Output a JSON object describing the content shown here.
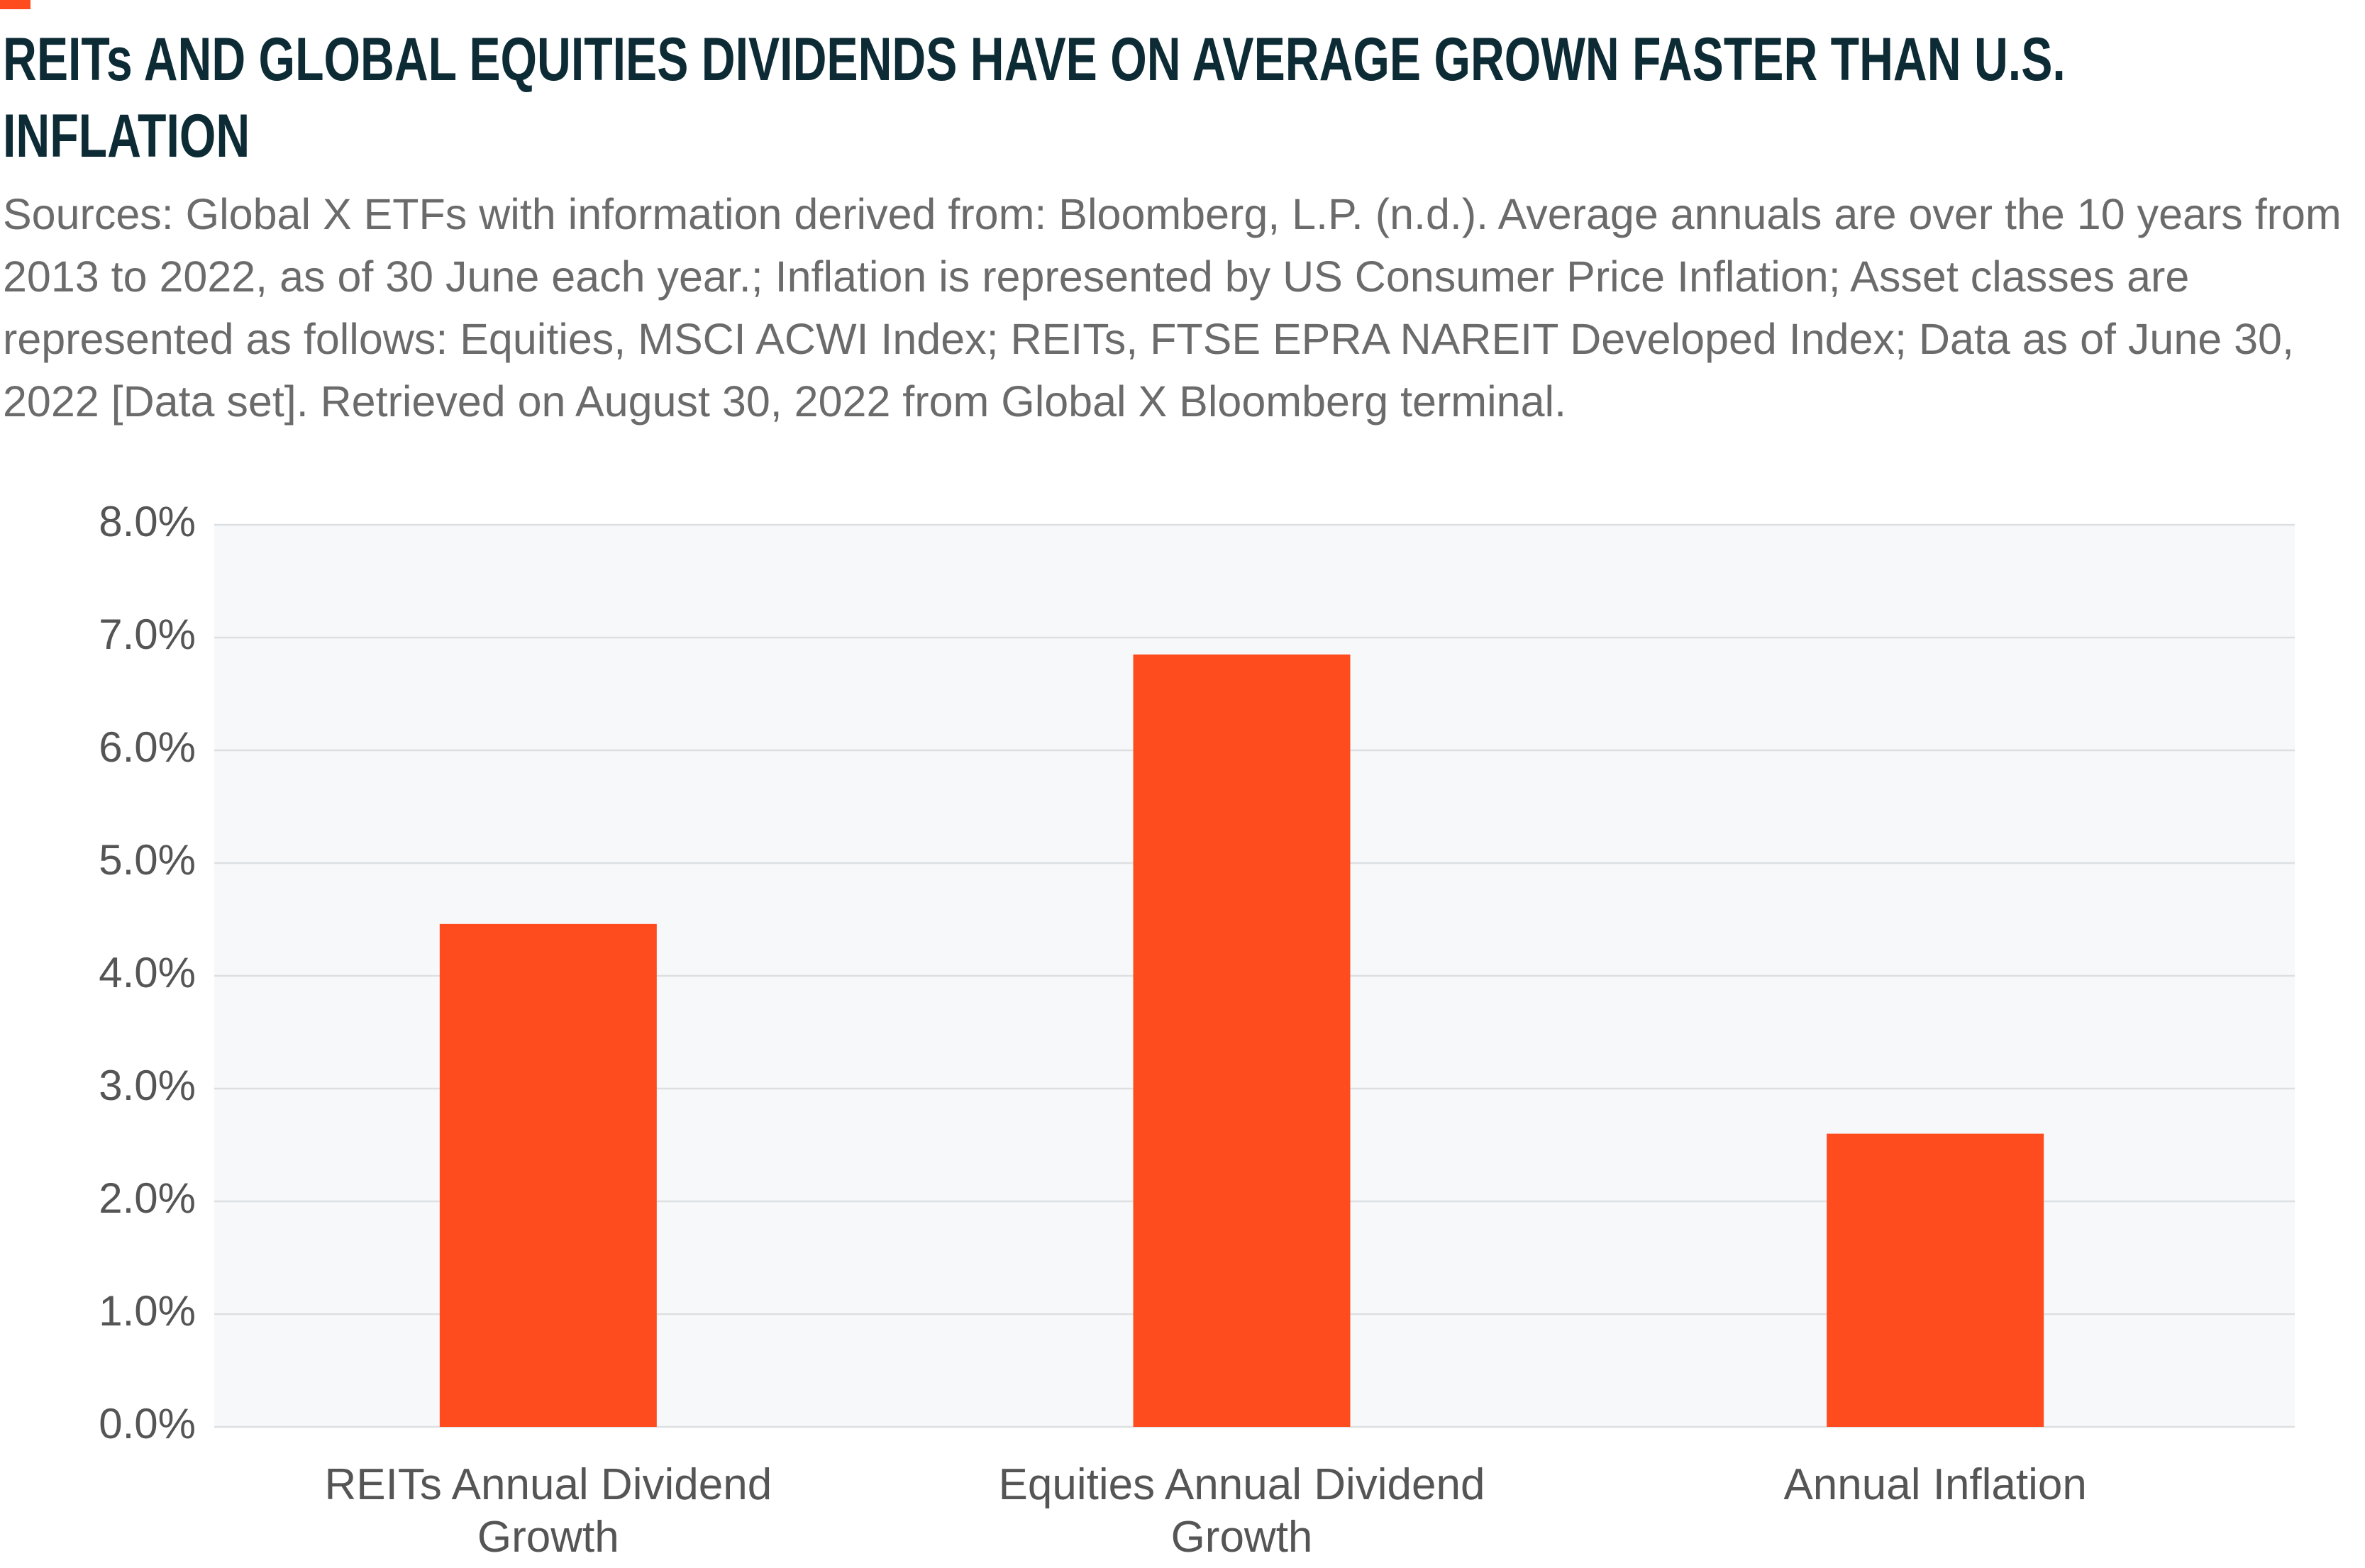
{
  "chart_data": {
    "type": "bar",
    "title": "REITs AND GLOBAL EQUITIES DIVIDENDS HAVE ON AVERAGE GROWN FASTER THAN U.S. INFLATION",
    "subtitle": "Sources: Global X ETFs with information derived from: Bloomberg, L.P. (n.d.). Average annuals are over the 10 years from 2013 to 2022, as of 30 June each year.; Inflation is represented by US Consumer Price Inflation; Asset classes are represented as follows: Equities, MSCI ACWI Index; REITs, FTSE EPRA NAREIT Developed Index; Data as of June 30, 2022 [Data set]. Retrieved on August 30, 2022 from Global X Bloomberg terminal.",
    "categories": [
      "REITs Annual Dividend Growth",
      "Equities Annual Dividend Growth",
      "Annual Inflation"
    ],
    "values": [
      4.46,
      6.85,
      2.6
    ],
    "color": "#ff4c1f",
    "ylim": [
      0,
      8
    ],
    "yticks": [
      {
        "value": 0,
        "label": "0.0%"
      },
      {
        "value": 1,
        "label": "1.0%"
      },
      {
        "value": 2,
        "label": "2.0%"
      },
      {
        "value": 3,
        "label": "3.0%"
      },
      {
        "value": 4,
        "label": "4.0%"
      },
      {
        "value": 5,
        "label": "5.0%"
      },
      {
        "value": 6,
        "label": "6.0%"
      },
      {
        "value": 7,
        "label": "7.0%"
      },
      {
        "value": 8,
        "label": "8.0%"
      }
    ],
    "grid": true
  }
}
